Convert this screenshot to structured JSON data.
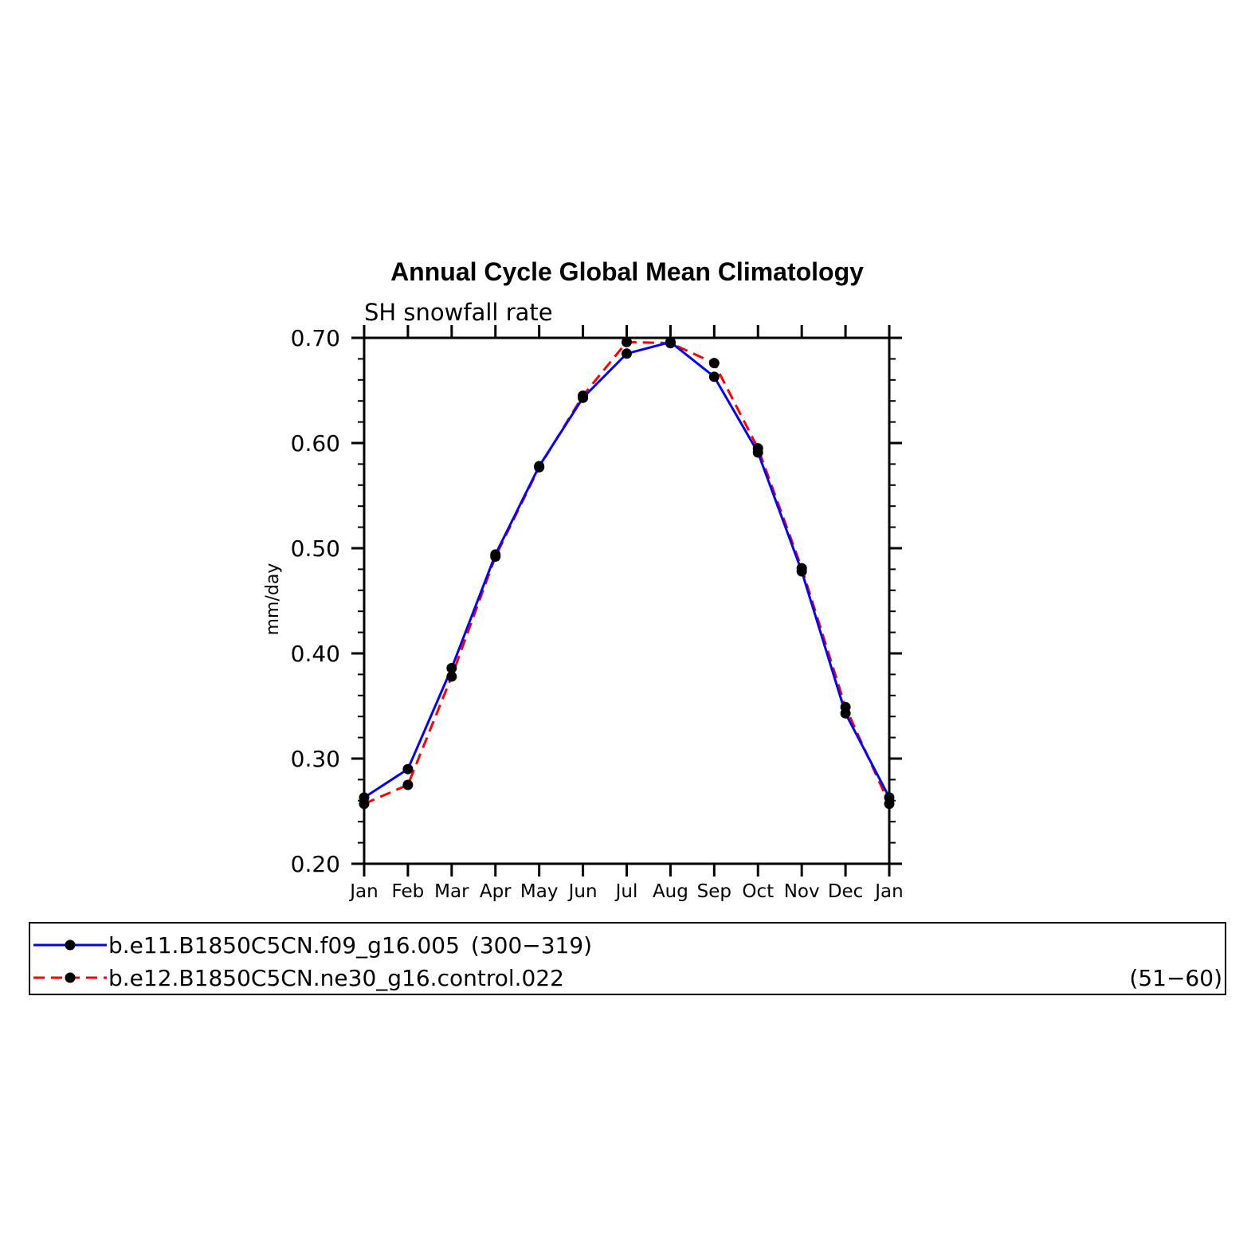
{
  "chart_data": {
    "type": "line",
    "title": "Annual Cycle Global Mean Climatology",
    "subtitle": "SH snowfall rate",
    "ylabel": "mm/day",
    "xlabel": "",
    "categories": [
      "Jan",
      "Feb",
      "Mar",
      "Apr",
      "May",
      "Jun",
      "Jul",
      "Aug",
      "Sep",
      "Oct",
      "Nov",
      "Dec",
      "Jan"
    ],
    "ylim": [
      0.2,
      0.7
    ],
    "yticks": [
      0.2,
      0.3,
      0.4,
      0.5,
      0.6,
      0.7
    ],
    "ytick_labels": [
      "0.20",
      "0.30",
      "0.40",
      "0.50",
      "0.60",
      "0.70"
    ],
    "grid": false,
    "legend_position": "bottom",
    "series": [
      {
        "name": "b.e11.B1850C5CN.f09_g16.005",
        "period": "(300−319)",
        "color": "#0000ff",
        "line_style": "solid",
        "marker": "circle",
        "marker_color": "#000000",
        "values": [
          0.263,
          0.29,
          0.386,
          0.494,
          0.578,
          0.643,
          0.685,
          0.696,
          0.663,
          0.591,
          0.478,
          0.343,
          0.263
        ]
      },
      {
        "name": "b.e12.B1850C5CN.ne30_g16.control.022",
        "period": "(51−60)",
        "color": "#ff0000",
        "line_style": "dashed",
        "marker": "circle",
        "marker_color": "#000000",
        "values": [
          0.257,
          0.275,
          0.378,
          0.492,
          0.577,
          0.645,
          0.696,
          0.695,
          0.676,
          0.595,
          0.481,
          0.349,
          0.257
        ]
      }
    ]
  }
}
